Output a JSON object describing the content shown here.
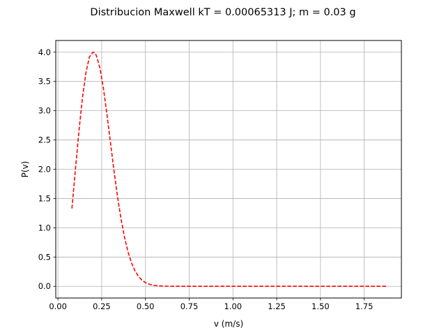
{
  "chart_data": {
    "type": "line",
    "title": "Distribucion Maxwell kT = 0.00065313 J; m = 0.03 g",
    "xlabel": "v (m/s)",
    "ylabel": "P(v)",
    "xlim": [
      -0.0125,
      1.9625
    ],
    "ylim": [
      -0.2,
      4.2
    ],
    "xticks": [
      0.0,
      0.25,
      0.5,
      0.75,
      1.0,
      1.25,
      1.5,
      1.75
    ],
    "xtick_labels": [
      "0.00",
      "0.25",
      "0.50",
      "0.75",
      "1.00",
      "1.25",
      "1.50",
      "1.75"
    ],
    "yticks": [
      0.0,
      0.5,
      1.0,
      1.5,
      2.0,
      2.5,
      3.0,
      3.5,
      4.0
    ],
    "ytick_labels": [
      "0.0",
      "0.5",
      "1.0",
      "1.5",
      "2.0",
      "2.5",
      "3.0",
      "3.5",
      "4.0"
    ],
    "grid": true,
    "series": [
      {
        "color": "#ff0000",
        "linestyle": "dashed",
        "x": [
          0.08,
          0.1,
          0.12,
          0.14,
          0.16,
          0.18,
          0.2,
          0.21,
          0.22,
          0.24,
          0.26,
          0.28,
          0.3,
          0.32,
          0.34,
          0.36,
          0.38,
          0.4,
          0.42,
          0.44,
          0.46,
          0.48,
          0.5,
          0.52,
          0.55,
          0.58,
          0.62,
          0.66,
          0.7,
          0.75,
          0.8,
          0.9,
          1.0,
          1.25,
          1.5,
          1.75,
          1.875
        ],
        "y": [
          1.33,
          2.0,
          2.65,
          3.22,
          3.65,
          3.92,
          4.0,
          3.99,
          3.94,
          3.73,
          3.38,
          2.94,
          2.46,
          1.98,
          1.54,
          1.16,
          0.844,
          0.593,
          0.403,
          0.266,
          0.17,
          0.105,
          0.063,
          0.037,
          0.016,
          0.006,
          0.0015,
          0.0003,
          0.0001,
          0.0,
          0.0,
          0.0,
          0.0,
          0.0,
          0.0,
          0.0,
          0.0
        ]
      }
    ]
  }
}
